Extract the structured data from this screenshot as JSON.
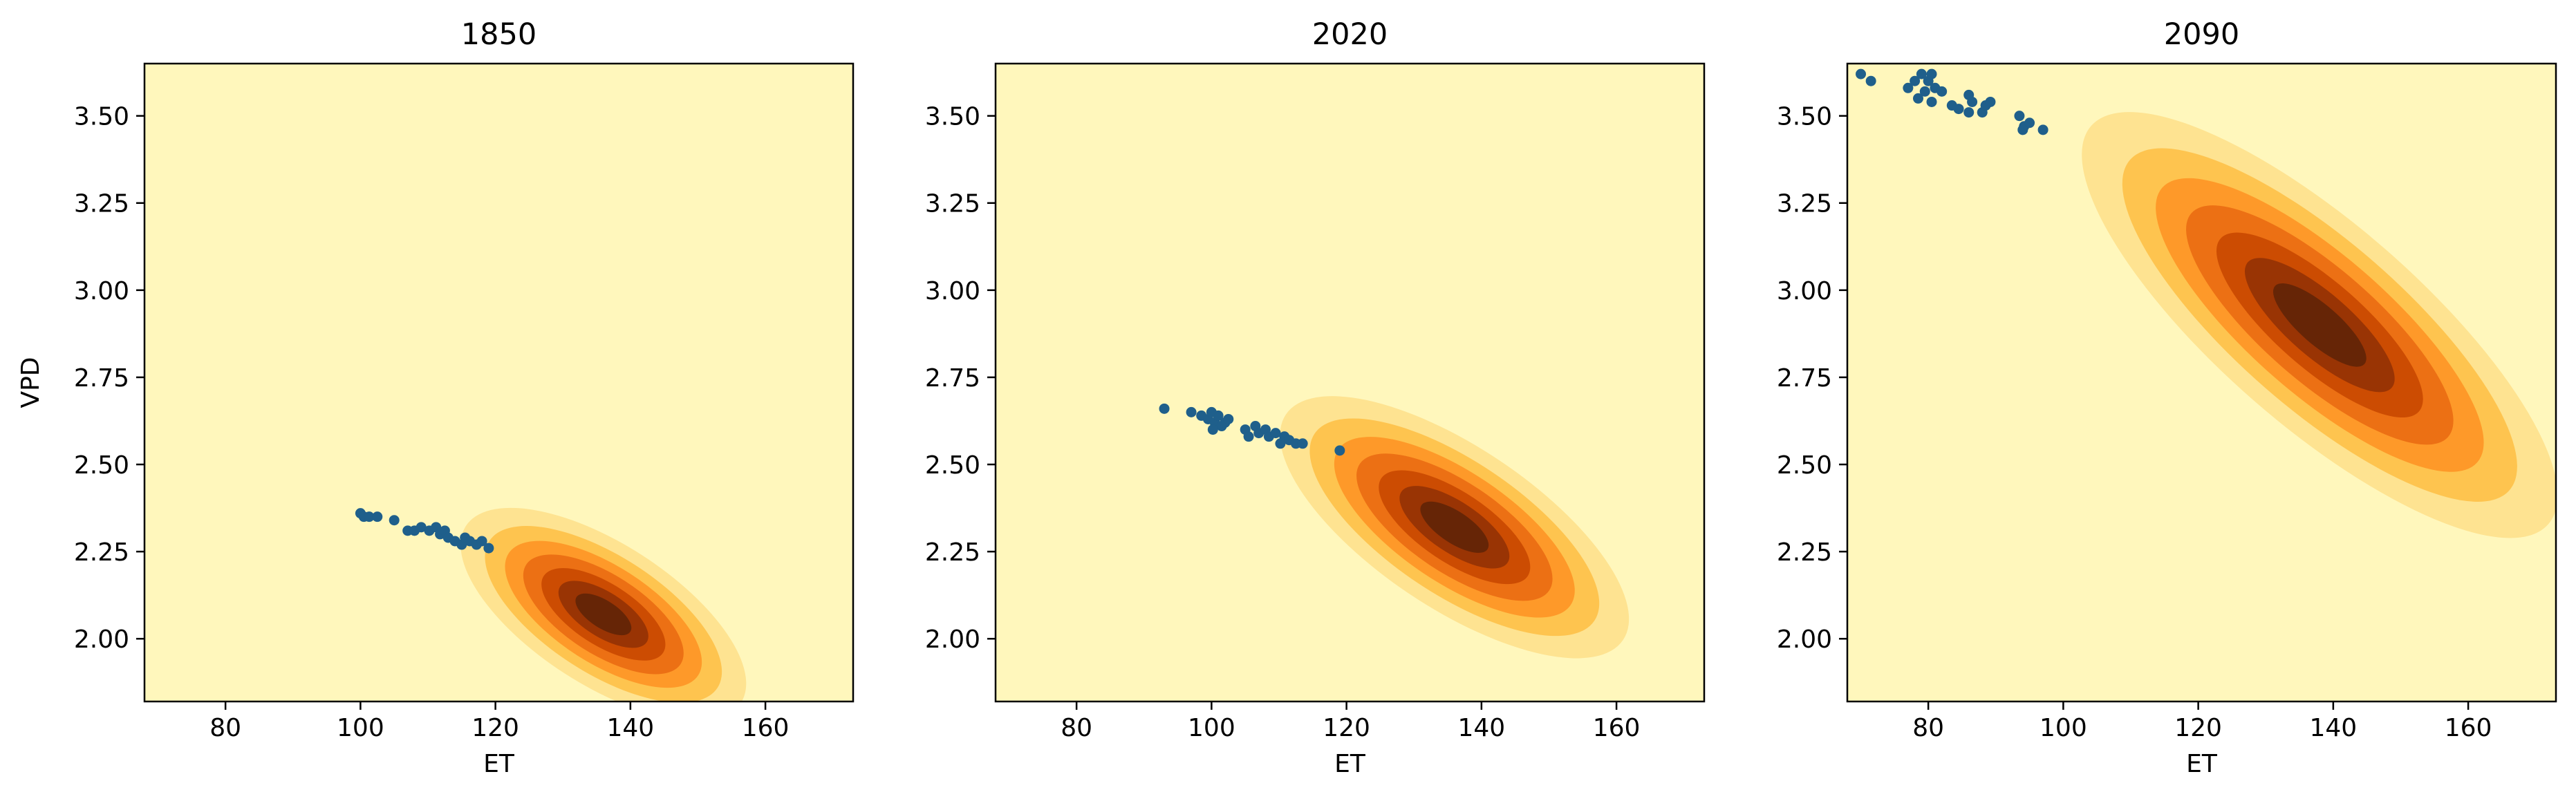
{
  "figure": {
    "background": "#ffffff"
  },
  "chart_data": [
    {
      "type": "scatter",
      "title": "1850",
      "xlabel": "ET",
      "ylabel": "VPD",
      "xlim": [
        68,
        173
      ],
      "ylim": [
        1.82,
        3.65
      ],
      "xticks": [
        80,
        100,
        120,
        140,
        160
      ],
      "yticks": [
        2.0,
        2.25,
        2.5,
        2.75,
        3.0,
        3.25,
        3.5
      ],
      "xtick_labels": [
        "80",
        "100",
        "120",
        "140",
        "160"
      ],
      "ytick_labels": [
        "2.00",
        "2.25",
        "2.50",
        "2.75",
        "3.00",
        "3.25",
        "3.50"
      ],
      "grid": false,
      "scatter": {
        "color": "#1f5f8b",
        "points": [
          [
            100,
            2.36
          ],
          [
            100.5,
            2.35
          ],
          [
            101.3,
            2.35
          ],
          [
            102.5,
            2.35
          ],
          [
            105,
            2.34
          ],
          [
            107,
            2.31
          ],
          [
            108,
            2.31
          ],
          [
            109,
            2.32
          ],
          [
            110.2,
            2.31
          ],
          [
            111.2,
            2.32
          ],
          [
            111.8,
            2.3
          ],
          [
            112.5,
            2.31
          ],
          [
            113,
            2.29
          ],
          [
            114,
            2.28
          ],
          [
            115,
            2.27
          ],
          [
            115.5,
            2.29
          ],
          [
            116.2,
            2.28
          ],
          [
            117.2,
            2.27
          ],
          [
            118,
            2.28
          ],
          [
            119,
            2.26
          ]
        ]
      },
      "density": {
        "colors": [
          "#fff7bc",
          "#fee391",
          "#fec44f",
          "#fe9929",
          "#ec7014",
          "#cc4c02",
          "#993404",
          "#662506"
        ],
        "center": [
          136,
          2.07
        ],
        "sigma": [
          9,
          0.13
        ],
        "rho": -0.65
      }
    },
    {
      "type": "scatter",
      "title": "2020",
      "xlabel": "ET",
      "ylabel": "",
      "xlim": [
        68,
        173
      ],
      "ylim": [
        1.82,
        3.65
      ],
      "xticks": [
        80,
        100,
        120,
        140,
        160
      ],
      "yticks": [
        2.0,
        2.25,
        2.5,
        2.75,
        3.0,
        3.25,
        3.5
      ],
      "xtick_labels": [
        "80",
        "100",
        "120",
        "140",
        "160"
      ],
      "ytick_labels": [
        "2.00",
        "2.25",
        "2.50",
        "2.75",
        "3.00",
        "3.25",
        "3.50"
      ],
      "grid": false,
      "scatter": {
        "color": "#1f5f8b",
        "points": [
          [
            93,
            2.66
          ],
          [
            97,
            2.65
          ],
          [
            98.5,
            2.64
          ],
          [
            99.5,
            2.63
          ],
          [
            100,
            2.65
          ],
          [
            100.5,
            2.62
          ],
          [
            101,
            2.64
          ],
          [
            101.5,
            2.61
          ],
          [
            102,
            2.62
          ],
          [
            102.5,
            2.63
          ],
          [
            100.2,
            2.6
          ],
          [
            105,
            2.6
          ],
          [
            105.5,
            2.58
          ],
          [
            106.5,
            2.61
          ],
          [
            107,
            2.59
          ],
          [
            108,
            2.6
          ],
          [
            108.5,
            2.58
          ],
          [
            109.5,
            2.59
          ],
          [
            110.2,
            2.56
          ],
          [
            110.8,
            2.58
          ],
          [
            111.5,
            2.57
          ],
          [
            112.5,
            2.56
          ],
          [
            113.5,
            2.56
          ],
          [
            119,
            2.54
          ]
        ]
      },
      "density": {
        "colors": [
          "#fff7bc",
          "#fee391",
          "#fec44f",
          "#fe9929",
          "#ec7014",
          "#cc4c02",
          "#993404",
          "#662506"
        ],
        "center": [
          136,
          2.32
        ],
        "sigma": [
          11,
          0.16
        ],
        "rho": -0.7
      }
    },
    {
      "type": "scatter",
      "title": "2090",
      "xlabel": "ET",
      "ylabel": "",
      "xlim": [
        68,
        173
      ],
      "ylim": [
        1.82,
        3.65
      ],
      "xticks": [
        80,
        100,
        120,
        140,
        160
      ],
      "yticks": [
        2.0,
        2.25,
        2.5,
        2.75,
        3.0,
        3.25,
        3.5
      ],
      "xtick_labels": [
        "80",
        "100",
        "120",
        "140",
        "160"
      ],
      "ytick_labels": [
        "2.00",
        "2.25",
        "2.50",
        "2.75",
        "3.00",
        "3.25",
        "3.50"
      ],
      "grid": false,
      "scatter": {
        "color": "#1f5f8b",
        "points": [
          [
            70,
            3.62
          ],
          [
            71.5,
            3.6
          ],
          [
            77,
            3.58
          ],
          [
            78,
            3.6
          ],
          [
            79,
            3.62
          ],
          [
            79.5,
            3.57
          ],
          [
            80,
            3.6
          ],
          [
            80.5,
            3.62
          ],
          [
            81,
            3.58
          ],
          [
            82,
            3.57
          ],
          [
            78.5,
            3.55
          ],
          [
            80.5,
            3.54
          ],
          [
            83.5,
            3.53
          ],
          [
            84.5,
            3.52
          ],
          [
            86,
            3.56
          ],
          [
            86.5,
            3.54
          ],
          [
            86,
            3.51
          ],
          [
            88,
            3.51
          ],
          [
            88.5,
            3.53
          ],
          [
            89.2,
            3.54
          ],
          [
            93.5,
            3.5
          ],
          [
            94.2,
            3.47
          ],
          [
            95,
            3.48
          ],
          [
            94,
            3.46
          ],
          [
            97,
            3.46
          ]
        ]
      },
      "density": {
        "colors": [
          "#fff7bc",
          "#fee391",
          "#fec44f",
          "#fe9929",
          "#ec7014",
          "#cc4c02",
          "#993404",
          "#662506"
        ],
        "center": [
          138,
          2.9
        ],
        "sigma": [
          15,
          0.26
        ],
        "rho": -0.8
      }
    }
  ]
}
